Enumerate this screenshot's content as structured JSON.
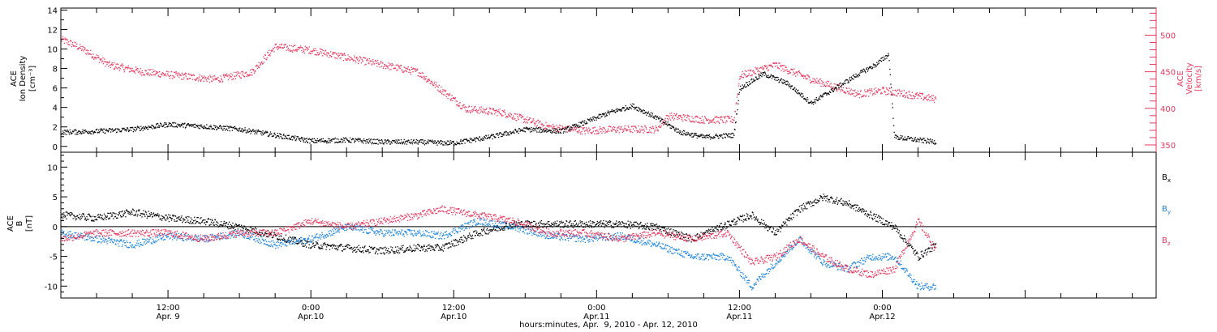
{
  "chart_data": [
    {
      "type": "scatter",
      "panel": "top",
      "xlim": [
        "2010-04-09 03:00",
        "2010-04-12 23:00"
      ],
      "left_axis": {
        "label_lines": [
          "ACE",
          "Ion Density",
          "[cm⁻³]"
        ],
        "ylim": [
          -0.6,
          14.2
        ],
        "ticks": [
          0,
          2,
          4,
          6,
          8,
          10,
          12,
          14
        ],
        "tick_labels": [
          "0",
          "2",
          "4",
          "6",
          "8",
          "10",
          "12",
          "14"
        ],
        "color": "#000000"
      },
      "right_axis": {
        "label_lines": [
          "ACE",
          "Velocity",
          "[km/s]"
        ],
        "ylim": [
          340,
          537
        ],
        "ticks": [
          350,
          400,
          450,
          500
        ],
        "tick_labels": [
          "350",
          "400",
          "450",
          "500"
        ],
        "color": "#e8385e"
      },
      "series": [
        {
          "color": "#000000",
          "axis": "left",
          "x": [
            "2010-04-09 03:00",
            "2010-04-09 06:00",
            "2010-04-09 09:00",
            "2010-04-09 12:00",
            "2010-04-09 15:00",
            "2010-04-09 18:00",
            "2010-04-09 21:00",
            "2010-04-10 00:00",
            "2010-04-10 03:00",
            "2010-04-10 06:00",
            "2010-04-10 09:00",
            "2010-04-10 11:00",
            "2010-04-10 12:00",
            "2010-04-10 15:00",
            "2010-04-10 18:00",
            "2010-04-10 21:00",
            "2010-04-10 23:00",
            "2010-04-11 01:00",
            "2010-04-11 03:00",
            "2010-04-11 05:00",
            "2010-04-11 07:00",
            "2010-04-11 09:00",
            "2010-04-11 11:30",
            "2010-04-11 12:00",
            "2010-04-11 14:00",
            "2010-04-11 16:00",
            "2010-04-11 18:00",
            "2010-04-11 20:00",
            "2010-04-11 22:00",
            "2010-04-11 23:30",
            "2010-04-12 00:30",
            "2010-04-12 01:00",
            "2010-04-12 03:00",
            "2010-04-12 04:30"
          ],
          "y": [
            1.5,
            1.6,
            1.8,
            2.3,
            2.1,
            1.8,
            1.2,
            0.6,
            0.7,
            0.5,
            0.5,
            0.4,
            0.4,
            1.0,
            1.8,
            1.6,
            2.5,
            3.5,
            4.2,
            3.0,
            1.5,
            1.0,
            1.2,
            6.0,
            7.5,
            6.5,
            4.5,
            6.0,
            7.5,
            8.5,
            9.5,
            1.0,
            0.7,
            0.5
          ]
        },
        {
          "color": "#e8385e",
          "axis": "right",
          "x": [
            "2010-04-09 03:00",
            "2010-04-09 04:00",
            "2010-04-09 05:00",
            "2010-04-09 07:00",
            "2010-04-09 10:00",
            "2010-04-09 13:00",
            "2010-04-09 16:00",
            "2010-04-09 19:00",
            "2010-04-09 21:00",
            "2010-04-10 00:00",
            "2010-04-10 03:00",
            "2010-04-10 06:00",
            "2010-04-10 09:00",
            "2010-04-10 11:00",
            "2010-04-10 13:00",
            "2010-04-10 16:00",
            "2010-04-10 18:00",
            "2010-04-10 20:00",
            "2010-04-10 23:00",
            "2010-04-11 02:00",
            "2010-04-11 05:00",
            "2010-04-11 06:00",
            "2010-04-11 09:00",
            "2010-04-11 11:30",
            "2010-04-11 12:00",
            "2010-04-11 15:00",
            "2010-04-11 18:00",
            "2010-04-11 20:00",
            "2010-04-11 22:00",
            "2010-04-12 00:00",
            "2010-04-12 02:00",
            "2010-04-12 04:30"
          ],
          "y": [
            495,
            488,
            480,
            460,
            450,
            445,
            440,
            450,
            485,
            480,
            470,
            460,
            450,
            425,
            400,
            395,
            385,
            375,
            370,
            372,
            372,
            390,
            385,
            385,
            445,
            460,
            440,
            430,
            420,
            425,
            420,
            413
          ]
        }
      ]
    },
    {
      "type": "scatter",
      "panel": "bottom",
      "xlim": [
        "2010-04-09 03:00",
        "2010-04-12 23:00"
      ],
      "ylabel_lines": [
        "ACE",
        "B",
        "[nT]"
      ],
      "ylim": [
        -12,
        12.5
      ],
      "ticks": [
        -10,
        -5,
        0,
        5,
        10
      ],
      "tick_labels": [
        "-10",
        "-5",
        "0",
        "5",
        "10"
      ],
      "zero_line": true,
      "legend": {
        "placement": "right",
        "entries": [
          "B",
          "B",
          "B"
        ],
        "subscripts": [
          "x",
          "y",
          "z"
        ]
      },
      "series": [
        {
          "color": "#000000",
          "x": [
            "2010-04-09 03:00",
            "2010-04-09 06:00",
            "2010-04-09 09:00",
            "2010-04-09 12:00",
            "2010-04-09 15:00",
            "2010-04-09 18:00",
            "2010-04-09 21:00",
            "2010-04-10 00:00",
            "2010-04-10 03:00",
            "2010-04-10 06:00",
            "2010-04-10 09:00",
            "2010-04-10 11:00",
            "2010-04-10 14:00",
            "2010-04-10 17:00",
            "2010-04-10 20:00",
            "2010-04-10 23:00",
            "2010-04-11 02:00",
            "2010-04-11 05:00",
            "2010-04-11 08:00",
            "2010-04-11 11:00",
            "2010-04-11 13:00",
            "2010-04-11 15:00",
            "2010-04-11 17:00",
            "2010-04-11 19:00",
            "2010-04-11 21:00",
            "2010-04-11 23:00",
            "2010-04-12 01:00",
            "2010-04-12 03:00",
            "2010-04-12 04:30"
          ],
          "y": [
            2,
            1.5,
            2.5,
            1.5,
            1,
            0,
            -1.5,
            -3,
            -3.5,
            -4,
            -3.5,
            -3.5,
            -1,
            0.5,
            0.5,
            0.5,
            0.5,
            0,
            -2,
            0.5,
            2,
            -1,
            3,
            5,
            4,
            2,
            0,
            -5,
            -3
          ]
        },
        {
          "color": "#1b85e0",
          "x": [
            "2010-04-09 03:00",
            "2010-04-09 06:00",
            "2010-04-09 09:00",
            "2010-04-09 12:00",
            "2010-04-09 15:00",
            "2010-04-09 18:00",
            "2010-04-09 21:00",
            "2010-04-10 00:00",
            "2010-04-10 03:00",
            "2010-04-10 06:00",
            "2010-04-10 09:00",
            "2010-04-10 11:00",
            "2010-04-10 14:00",
            "2010-04-10 17:00",
            "2010-04-10 20:00",
            "2010-04-10 23:00",
            "2010-04-11 02:00",
            "2010-04-11 05:00",
            "2010-04-11 08:00",
            "2010-04-11 11:00",
            "2010-04-11 13:00",
            "2010-04-11 15:00",
            "2010-04-11 17:00",
            "2010-04-11 19:00",
            "2010-04-11 21:00",
            "2010-04-11 23:00",
            "2010-04-12 01:00",
            "2010-04-12 03:00",
            "2010-04-12 04:30"
          ],
          "y": [
            -1,
            -2,
            -3,
            -1.5,
            -2,
            -1,
            -3,
            -2,
            0,
            -1,
            -1,
            -1.5,
            1,
            0,
            -1.5,
            -2,
            -1.5,
            -3,
            -5,
            -5,
            -10,
            -6,
            -2,
            -6,
            -7,
            -5,
            -5,
            -10,
            -10
          ]
        },
        {
          "color": "#e8385e",
          "x": [
            "2010-04-09 03:00",
            "2010-04-09 06:00",
            "2010-04-09 09:00",
            "2010-04-09 12:00",
            "2010-04-09 15:00",
            "2010-04-09 18:00",
            "2010-04-09 21:00",
            "2010-04-10 00:00",
            "2010-04-10 03:00",
            "2010-04-10 06:00",
            "2010-04-10 09:00",
            "2010-04-10 11:00",
            "2010-04-10 14:00",
            "2010-04-10 17:00",
            "2010-04-10 20:00",
            "2010-04-10 23:00",
            "2010-04-11 02:00",
            "2010-04-11 05:00",
            "2010-04-11 08:00",
            "2010-04-11 11:00",
            "2010-04-11 13:00",
            "2010-04-11 15:00",
            "2010-04-11 17:00",
            "2010-04-11 19:00",
            "2010-04-11 21:00",
            "2010-04-11 23:00",
            "2010-04-12 01:00",
            "2010-04-12 03:00",
            "2010-04-12 04:30"
          ],
          "y": [
            -2,
            -1,
            -1,
            -1,
            -2,
            -1,
            -1,
            1,
            0,
            1,
            2,
            3,
            2,
            1,
            -1,
            -1,
            -2,
            -1,
            -2,
            -1,
            -6,
            -5,
            -2,
            -5,
            -7,
            -8,
            -7,
            1,
            -4
          ]
        }
      ]
    }
  ],
  "x_axis": {
    "major_ticks": [
      "2010-04-09 12:00",
      "2010-04-10 00:00",
      "2010-04-10 12:00",
      "2010-04-11 00:00",
      "2010-04-11 12:00",
      "2010-04-12 00:00"
    ],
    "time_labels": [
      "12:00",
      "0:00",
      "12:00",
      "0:00",
      "12:00",
      "0:00"
    ],
    "date_labels": [
      "Apr. 9",
      "Apr.10",
      "Apr.10",
      "Apr.11",
      "Apr.11",
      "Apr.12"
    ],
    "title": "hours:minutes, Apr.  9, 2010 - Apr. 12, 2010"
  }
}
